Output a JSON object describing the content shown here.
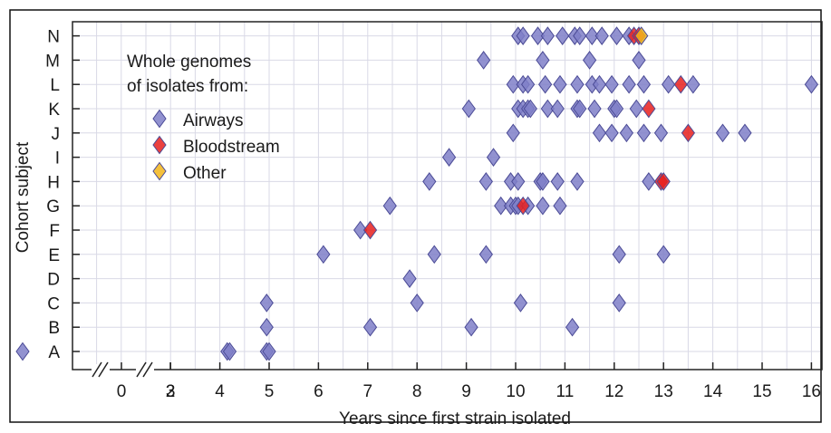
{
  "chart_data": {
    "type": "scatter",
    "title": "",
    "xlabel": "Years since first strain isolated",
    "ylabel": "Cohort subject",
    "x_ticks": [
      "0",
      "2",
      "3",
      "4",
      "5",
      "6",
      "7",
      "8",
      "9",
      "10",
      "11",
      "12",
      "13",
      "14",
      "15",
      "16"
    ],
    "x_axis_break": "between 0 and 3",
    "xlim": [
      -0.5,
      16.2
    ],
    "categories": [
      "A",
      "B",
      "C",
      "D",
      "E",
      "F",
      "G",
      "H",
      "I",
      "J",
      "K",
      "L",
      "M",
      "N"
    ],
    "grid": true,
    "legend": {
      "title_lines": [
        "Whole genomes",
        "of isolates from:"
      ],
      "placement": "top-left",
      "entries": [
        "Airways",
        "Bloodstream",
        "Other"
      ]
    },
    "colors": {
      "Airways": "#7f7fc8",
      "Bloodstream": "#e8201d",
      "Other": "#f2b51a",
      "marker_edge": "#4b4b96"
    },
    "series": [
      {
        "name": "Airways",
        "points": [
          {
            "y": "A",
            "x": 0
          },
          {
            "y": "A",
            "x": 4.15
          },
          {
            "y": "A",
            "x": 4.2
          },
          {
            "y": "A",
            "x": 4.95
          },
          {
            "y": "A",
            "x": 5.0
          },
          {
            "y": "B",
            "x": 4.95
          },
          {
            "y": "B",
            "x": 7.05
          },
          {
            "y": "B",
            "x": 9.1
          },
          {
            "y": "B",
            "x": 11.15
          },
          {
            "y": "C",
            "x": 4.95
          },
          {
            "y": "C",
            "x": 8.0
          },
          {
            "y": "C",
            "x": 10.1
          },
          {
            "y": "C",
            "x": 12.1
          },
          {
            "y": "D",
            "x": 7.85
          },
          {
            "y": "E",
            "x": 6.1
          },
          {
            "y": "E",
            "x": 8.35
          },
          {
            "y": "E",
            "x": 9.4
          },
          {
            "y": "E",
            "x": 12.1
          },
          {
            "y": "E",
            "x": 13.0
          },
          {
            "y": "F",
            "x": 6.85
          },
          {
            "y": "G",
            "x": 7.45
          },
          {
            "y": "G",
            "x": 9.7
          },
          {
            "y": "G",
            "x": 9.9
          },
          {
            "y": "G",
            "x": 10.0
          },
          {
            "y": "G",
            "x": 10.05
          },
          {
            "y": "G",
            "x": 10.25
          },
          {
            "y": "G",
            "x": 10.55
          },
          {
            "y": "G",
            "x": 10.9
          },
          {
            "y": "H",
            "x": 8.25
          },
          {
            "y": "H",
            "x": 9.4
          },
          {
            "y": "H",
            "x": 9.9
          },
          {
            "y": "H",
            "x": 10.05
          },
          {
            "y": "H",
            "x": 10.5
          },
          {
            "y": "H",
            "x": 10.55
          },
          {
            "y": "H",
            "x": 10.85
          },
          {
            "y": "H",
            "x": 11.25
          },
          {
            "y": "H",
            "x": 12.7
          },
          {
            "y": "I",
            "x": 8.65
          },
          {
            "y": "I",
            "x": 9.55
          },
          {
            "y": "J",
            "x": 9.95
          },
          {
            "y": "J",
            "x": 11.7
          },
          {
            "y": "J",
            "x": 11.95
          },
          {
            "y": "J",
            "x": 12.25
          },
          {
            "y": "J",
            "x": 12.6
          },
          {
            "y": "J",
            "x": 12.95
          },
          {
            "y": "J",
            "x": 14.2
          },
          {
            "y": "J",
            "x": 14.65
          },
          {
            "y": "K",
            "x": 9.05
          },
          {
            "y": "K",
            "x": 10.05
          },
          {
            "y": "K",
            "x": 10.15
          },
          {
            "y": "K",
            "x": 10.25
          },
          {
            "y": "K",
            "x": 10.3
          },
          {
            "y": "K",
            "x": 10.65
          },
          {
            "y": "K",
            "x": 10.85
          },
          {
            "y": "K",
            "x": 11.25
          },
          {
            "y": "K",
            "x": 11.3
          },
          {
            "y": "K",
            "x": 11.6
          },
          {
            "y": "K",
            "x": 12.0
          },
          {
            "y": "K",
            "x": 12.05
          },
          {
            "y": "K",
            "x": 12.45
          },
          {
            "y": "L",
            "x": 9.95
          },
          {
            "y": "L",
            "x": 10.15
          },
          {
            "y": "L",
            "x": 10.25
          },
          {
            "y": "L",
            "x": 10.6
          },
          {
            "y": "L",
            "x": 10.9
          },
          {
            "y": "L",
            "x": 11.25
          },
          {
            "y": "L",
            "x": 11.55
          },
          {
            "y": "L",
            "x": 11.7
          },
          {
            "y": "L",
            "x": 11.95
          },
          {
            "y": "L",
            "x": 12.3
          },
          {
            "y": "L",
            "x": 12.6
          },
          {
            "y": "L",
            "x": 13.1
          },
          {
            "y": "L",
            "x": 13.6
          },
          {
            "y": "L",
            "x": 16.0
          },
          {
            "y": "M",
            "x": 9.35
          },
          {
            "y": "M",
            "x": 10.55
          },
          {
            "y": "M",
            "x": 11.5
          },
          {
            "y": "M",
            "x": 12.5
          },
          {
            "y": "N",
            "x": 10.05
          },
          {
            "y": "N",
            "x": 10.15
          },
          {
            "y": "N",
            "x": 10.45
          },
          {
            "y": "N",
            "x": 10.65
          },
          {
            "y": "N",
            "x": 10.95
          },
          {
            "y": "N",
            "x": 11.2
          },
          {
            "y": "N",
            "x": 11.3
          },
          {
            "y": "N",
            "x": 11.55
          },
          {
            "y": "N",
            "x": 11.75
          },
          {
            "y": "N",
            "x": 12.05
          },
          {
            "y": "N",
            "x": 12.3
          }
        ]
      },
      {
        "name": "Bloodstream",
        "points": [
          {
            "y": "F",
            "x": 7.05
          },
          {
            "y": "G",
            "x": 10.15
          },
          {
            "y": "H",
            "x": 12.95
          },
          {
            "y": "H",
            "x": 13.0
          },
          {
            "y": "J",
            "x": 13.5
          },
          {
            "y": "K",
            "x": 12.7
          },
          {
            "y": "L",
            "x": 13.35
          },
          {
            "y": "N",
            "x": 12.4
          },
          {
            "y": "N",
            "x": 12.5
          }
        ]
      },
      {
        "name": "Other",
        "points": [
          {
            "y": "N",
            "x": 12.55
          }
        ]
      }
    ]
  }
}
